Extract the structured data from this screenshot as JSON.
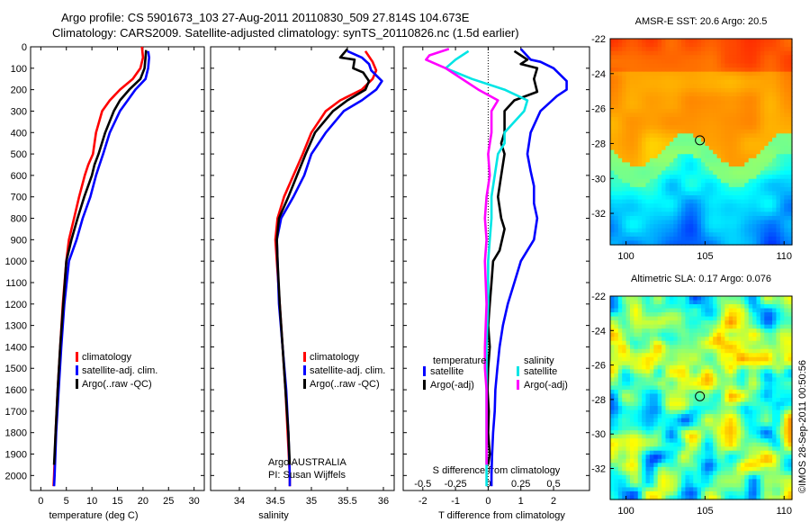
{
  "header": {
    "title_line1": "Argo profile: CS 5901673_103 27-Aug-2011 20110830_509 27.814S 104.673E",
    "title_line2": "Climatology: CARS2009. Satellite-adjusted climatology: synTS_20110826.nc (1.5d earlier)"
  },
  "colors": {
    "climatology": "#ff0000",
    "satellite": "#0000ff",
    "argo": "#000000",
    "satellite_salinity": "#00e5e5",
    "argo_salinity": "#ff00ff"
  },
  "depth_ticks": [
    "0",
    "100",
    "200",
    "300",
    "400",
    "500",
    "600",
    "700",
    "800",
    "900",
    "1000",
    "1100",
    "1200",
    "1300",
    "1400",
    "1500",
    "1600",
    "1700",
    "1800",
    "1900",
    "2000"
  ],
  "chart_data": [
    {
      "type": "line",
      "panel": "temperature",
      "xlabel": "temperature (deg C)",
      "xlim": [
        -2,
        32
      ],
      "x_ticks": [
        "0",
        "5",
        "10",
        "15",
        "20",
        "25",
        "30"
      ],
      "ylim": [
        0,
        2070
      ],
      "y_reversed": true,
      "legend": [
        "climatology",
        "satellite-adj. clim.",
        "Argo(..raw -QC)"
      ],
      "series": [
        {
          "name": "climatology",
          "points": [
            [
              19.8,
              0
            ],
            [
              20,
              50
            ],
            [
              19.5,
              100
            ],
            [
              18,
              150
            ],
            [
              15.5,
              200
            ],
            [
              13.5,
              250
            ],
            [
              12,
              300
            ],
            [
              10.8,
              400
            ],
            [
              10.2,
              500
            ],
            [
              9.3,
              550
            ],
            [
              8.6,
              600
            ],
            [
              7.5,
              700
            ],
            [
              6.5,
              800
            ],
            [
              5.5,
              900
            ],
            [
              5,
              1000
            ],
            [
              4.3,
              1200
            ],
            [
              3.8,
              1400
            ],
            [
              3.3,
              1600
            ],
            [
              2.9,
              1800
            ],
            [
              2.6,
              2000
            ],
            [
              2.5,
              2050
            ]
          ]
        },
        {
          "name": "satellite-adj. clim.",
          "points": [
            [
              21,
              20
            ],
            [
              21.2,
              50
            ],
            [
              21,
              100
            ],
            [
              20.5,
              150
            ],
            [
              18.5,
              200
            ],
            [
              17,
              250
            ],
            [
              15.5,
              300
            ],
            [
              13.5,
              400
            ],
            [
              12.2,
              500
            ],
            [
              11.5,
              550
            ],
            [
              10.8,
              600
            ],
            [
              9.7,
              700
            ],
            [
              8.2,
              800
            ],
            [
              7,
              900
            ],
            [
              5.5,
              1000
            ],
            [
              4.6,
              1200
            ],
            [
              4,
              1400
            ],
            [
              3.5,
              1600
            ],
            [
              3,
              1800
            ],
            [
              2.7,
              2000
            ],
            [
              2.6,
              2050
            ]
          ]
        },
        {
          "name": "Argo(..raw -QC)",
          "points": [
            [
              20.6,
              15
            ],
            [
              20.5,
              50
            ],
            [
              20.3,
              100
            ],
            [
              19.5,
              150
            ],
            [
              17.3,
              200
            ],
            [
              15.5,
              250
            ],
            [
              14.3,
              300
            ],
            [
              12.6,
              400
            ],
            [
              11.3,
              500
            ],
            [
              10.5,
              550
            ],
            [
              10,
              600
            ],
            [
              8.5,
              700
            ],
            [
              7.2,
              800
            ],
            [
              6,
              900
            ],
            [
              5,
              1000
            ],
            [
              4.4,
              1200
            ],
            [
              3.8,
              1400
            ],
            [
              3.3,
              1600
            ],
            [
              2.9,
              1800
            ],
            [
              2.6,
              1950
            ]
          ]
        }
      ]
    },
    {
      "type": "line",
      "panel": "salinity",
      "xlabel": "salinity",
      "xlim": [
        33.6,
        36.15
      ],
      "x_ticks": [
        "34",
        "34.5",
        "35",
        "35.5",
        "36"
      ],
      "ylim": [
        0,
        2070
      ],
      "y_reversed": true,
      "legend": [
        "climatology",
        "satellite-adj. clim.",
        "Argo(..raw -QC)"
      ],
      "annotation": [
        "Argo AUSTRALIA",
        "PI: Susan Wijffels"
      ],
      "series": [
        {
          "name": "climatology",
          "points": [
            [
              35.75,
              20
            ],
            [
              35.85,
              70
            ],
            [
              35.9,
              110
            ],
            [
              35.85,
              150
            ],
            [
              35.7,
              200
            ],
            [
              35.4,
              250
            ],
            [
              35.2,
              300
            ],
            [
              35,
              400
            ],
            [
              34.88,
              500
            ],
            [
              34.75,
              600
            ],
            [
              34.62,
              700
            ],
            [
              34.53,
              800
            ],
            [
              34.5,
              900
            ],
            [
              34.52,
              1000
            ],
            [
              34.56,
              1200
            ],
            [
              34.6,
              1400
            ],
            [
              34.64,
              1600
            ],
            [
              34.67,
              1800
            ],
            [
              34.7,
              2000
            ],
            [
              34.7,
              2050
            ]
          ]
        },
        {
          "name": "satellite-adj. clim.",
          "points": [
            [
              35.5,
              20
            ],
            [
              35.7,
              50
            ],
            [
              35.8,
              80
            ],
            [
              35.83,
              110
            ],
            [
              35.98,
              160
            ],
            [
              35.9,
              200
            ],
            [
              35.7,
              250
            ],
            [
              35.45,
              300
            ],
            [
              35.2,
              400
            ],
            [
              35,
              500
            ],
            [
              34.9,
              600
            ],
            [
              34.75,
              700
            ],
            [
              34.58,
              800
            ],
            [
              34.52,
              900
            ],
            [
              34.53,
              1000
            ],
            [
              34.55,
              1200
            ],
            [
              34.6,
              1400
            ],
            [
              34.65,
              1600
            ],
            [
              34.68,
              1800
            ],
            [
              34.7,
              2000
            ],
            [
              34.7,
              2050
            ]
          ]
        },
        {
          "name": "Argo(..raw -QC)",
          "points": [
            [
              35.5,
              10
            ],
            [
              35.4,
              50
            ],
            [
              35.6,
              60
            ],
            [
              35.58,
              100
            ],
            [
              35.72,
              120
            ],
            [
              35.8,
              160
            ],
            [
              35.75,
              200
            ],
            [
              35.5,
              250
            ],
            [
              35.3,
              300
            ],
            [
              35.05,
              400
            ],
            [
              34.92,
              500
            ],
            [
              34.8,
              600
            ],
            [
              34.68,
              700
            ],
            [
              34.55,
              800
            ],
            [
              34.52,
              900
            ],
            [
              34.53,
              1000
            ],
            [
              34.56,
              1200
            ],
            [
              34.6,
              1400
            ],
            [
              34.64,
              1600
            ],
            [
              34.68,
              1800
            ],
            [
              34.7,
              1950
            ]
          ]
        }
      ]
    },
    {
      "type": "line",
      "panel": "difference from climatology",
      "xlabel": "T difference from climatology",
      "xlabel_top": "S difference from climatology",
      "xlim": [
        -2.6,
        3.1
      ],
      "x_ticks": [
        "-2",
        "-1",
        "0",
        "1",
        "2"
      ],
      "x2_ticks": [
        "-0.5",
        "-0.25",
        "0",
        "0.25",
        "0.5"
      ],
      "x2_note": "S axis = T axis / 4",
      "ylim": [
        0,
        2070
      ],
      "y_reversed": true,
      "legend_headers": [
        "temperature",
        "salinity"
      ],
      "legend": [
        "satellite",
        "Argo(-adj)",
        "satellite",
        "Argo(-adj)"
      ],
      "series": [
        {
          "name": "temperature satellite",
          "points": [
            [
              1,
              10
            ],
            [
              1.3,
              60
            ],
            [
              1.6,
              70
            ],
            [
              2,
              100
            ],
            [
              2.4,
              160
            ],
            [
              2.4,
              200
            ],
            [
              2.1,
              230
            ],
            [
              1.6,
              300
            ],
            [
              1.3,
              400
            ],
            [
              1.2,
              500
            ],
            [
              1.3,
              580
            ],
            [
              1.4,
              650
            ],
            [
              1.4,
              730
            ],
            [
              1.5,
              800
            ],
            [
              1.4,
              900
            ],
            [
              1.0,
              1000
            ],
            [
              0.8,
              1100
            ],
            [
              0.6,
              1200
            ],
            [
              0.45,
              1300
            ],
            [
              0.35,
              1400
            ],
            [
              0.28,
              1500
            ],
            [
              0.22,
              1600
            ],
            [
              0.2,
              1700
            ],
            [
              0.15,
              1800
            ],
            [
              0.12,
              1900
            ],
            [
              0.1,
              2000
            ],
            [
              0.1,
              2050
            ]
          ]
        },
        {
          "name": "temperature Argo(-adj)",
          "points": [
            [
              0.8,
              20
            ],
            [
              1,
              40
            ],
            [
              1.2,
              60
            ],
            [
              1.0,
              80
            ],
            [
              1.5,
              100
            ],
            [
              1.4,
              150
            ],
            [
              1.5,
              210
            ],
            [
              0.8,
              250
            ],
            [
              0.5,
              300
            ],
            [
              0.5,
              400
            ],
            [
              0.4,
              450
            ],
            [
              0.5,
              500
            ],
            [
              0.4,
              600
            ],
            [
              0.3,
              700
            ],
            [
              0.4,
              800
            ],
            [
              0.5,
              850
            ],
            [
              0.35,
              950
            ],
            [
              0.15,
              1000
            ],
            [
              0.1,
              1100
            ],
            [
              0.05,
              1200
            ],
            [
              0.0,
              1300
            ],
            [
              0.05,
              1400
            ],
            [
              0.0,
              1500
            ],
            [
              -0.02,
              1600
            ],
            [
              0.02,
              1700
            ],
            [
              0.0,
              1800
            ],
            [
              0.05,
              1900
            ],
            [
              0.0,
              1950
            ]
          ]
        },
        {
          "name": "salinity satellite",
          "points": [
            [
              -0.6,
              20
            ],
            [
              -1.0,
              60
            ],
            [
              -1.3,
              100
            ],
            [
              -0.5,
              150
            ],
            [
              0.5,
              200
            ],
            [
              1.2,
              250
            ],
            [
              1.1,
              300
            ],
            [
              0.5,
              400
            ],
            [
              0.5,
              450
            ],
            [
              0.3,
              500
            ],
            [
              0.2,
              600
            ],
            [
              0.1,
              700
            ],
            [
              0.1,
              800
            ],
            [
              0.05,
              900
            ],
            [
              0.0,
              1000
            ],
            [
              0.0,
              1200
            ],
            [
              -0.05,
              1400
            ],
            [
              -0.05,
              1600
            ],
            [
              -0.05,
              1800
            ],
            [
              -0.05,
              2000
            ],
            [
              -0.05,
              2050
            ]
          ]
        },
        {
          "name": "salinity Argo(-adj)",
          "points": [
            [
              -1.2,
              10
            ],
            [
              -1.8,
              40
            ],
            [
              -1.9,
              60
            ],
            [
              -1.3,
              100
            ],
            [
              -0.3,
              200
            ],
            [
              0.3,
              250
            ],
            [
              0.1,
              300
            ],
            [
              0.1,
              400
            ],
            [
              0.0,
              500
            ],
            [
              0.05,
              600
            ],
            [
              -0.05,
              700
            ],
            [
              -0.1,
              800
            ],
            [
              -0.05,
              900
            ],
            [
              -0.1,
              1000
            ],
            [
              -0.05,
              1200
            ],
            [
              -0.1,
              1400
            ],
            [
              -0.1,
              1500
            ],
            [
              -0.05,
              1600
            ],
            [
              -0.05,
              1800
            ],
            [
              -0.05,
              1950
            ]
          ]
        }
      ]
    },
    {
      "type": "heatmap",
      "panel": "AMSR-E SST",
      "title": "AMSR-E SST: 20.6 Argo: 20.5",
      "xlim": [
        99,
        110.5
      ],
      "ylim": [
        -33.8,
        -22
      ],
      "x_ticks": [
        "100",
        "105",
        "110"
      ],
      "y_ticks": [
        "-22",
        "-24",
        "-26",
        "-28",
        "-30",
        "-32"
      ],
      "marker": [
        104.673,
        -27.814
      ]
    },
    {
      "type": "heatmap",
      "panel": "Altimetric SLA",
      "title": "Altimetric SLA: 0.17 Argo: 0.076",
      "xlim": [
        99,
        110.5
      ],
      "ylim": [
        -33.8,
        -22
      ],
      "x_ticks": [
        "100",
        "105",
        "110"
      ],
      "y_ticks": [
        "-22",
        "-24",
        "-26",
        "-28",
        "-30",
        "-32"
      ],
      "marker": [
        104.673,
        -27.814
      ]
    }
  ],
  "footer": {
    "stamp": "©IMOS 28-Sep-2011 00:50:56"
  }
}
